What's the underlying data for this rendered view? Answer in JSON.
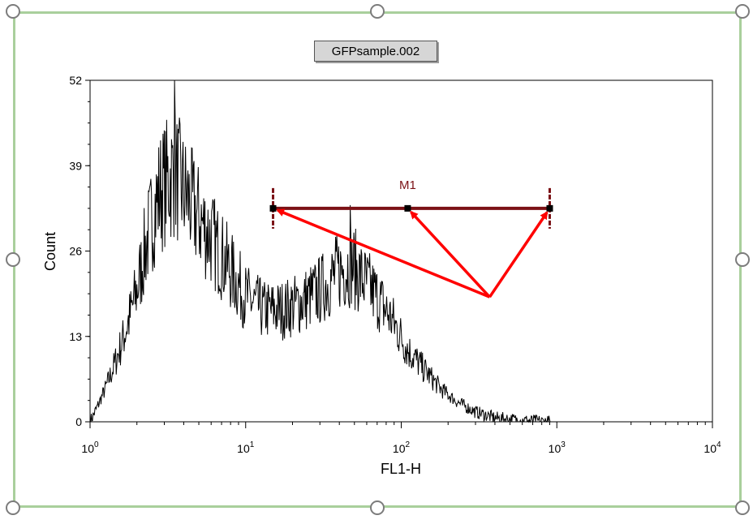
{
  "plot_title": "GFPsample.002",
  "colors": {
    "frame": "#a9cf9c",
    "histogram": "#000000",
    "marker": "#7b1115",
    "arrows": "#ff0000",
    "title_bg": "#d6d6d6"
  },
  "chart_data": {
    "type": "histogram",
    "title": "GFPsample.002",
    "xlabel": "FL1-H",
    "ylabel": "Count",
    "xscale": "log",
    "xlim": [
      1,
      10000
    ],
    "ylim": [
      0,
      52
    ],
    "y_ticks": [
      0,
      13,
      26,
      39,
      52
    ],
    "x_ticks": [
      {
        "base": "10",
        "exp": "0",
        "value": 1
      },
      {
        "base": "10",
        "exp": "1",
        "value": 10
      },
      {
        "base": "10",
        "exp": "2",
        "value": 100
      },
      {
        "base": "10",
        "exp": "3",
        "value": 1000
      },
      {
        "base": "10",
        "exp": "4",
        "value": 10000
      }
    ],
    "grid": false,
    "envelope": [
      {
        "x": 1.0,
        "y": 0
      },
      {
        "x": 1.1,
        "y": 2
      },
      {
        "x": 1.25,
        "y": 5
      },
      {
        "x": 1.4,
        "y": 8
      },
      {
        "x": 1.6,
        "y": 12
      },
      {
        "x": 1.8,
        "y": 16
      },
      {
        "x": 2.0,
        "y": 20
      },
      {
        "x": 2.2,
        "y": 25
      },
      {
        "x": 2.5,
        "y": 31
      },
      {
        "x": 2.8,
        "y": 35
      },
      {
        "x": 3.2,
        "y": 37
      },
      {
        "x": 3.5,
        "y": 38
      },
      {
        "x": 4.0,
        "y": 35
      },
      {
        "x": 5.0,
        "y": 31
      },
      {
        "x": 6.0,
        "y": 28
      },
      {
        "x": 8.0,
        "y": 23
      },
      {
        "x": 10.0,
        "y": 19
      },
      {
        "x": 13.0,
        "y": 17
      },
      {
        "x": 17.0,
        "y": 17
      },
      {
        "x": 22.0,
        "y": 18
      },
      {
        "x": 30.0,
        "y": 20
      },
      {
        "x": 40.0,
        "y": 23
      },
      {
        "x": 48.0,
        "y": 24
      },
      {
        "x": 55.0,
        "y": 22
      },
      {
        "x": 70.0,
        "y": 19
      },
      {
        "x": 90.0,
        "y": 15
      },
      {
        "x": 110.0,
        "y": 11
      },
      {
        "x": 140.0,
        "y": 8
      },
      {
        "x": 180.0,
        "y": 5
      },
      {
        "x": 230.0,
        "y": 3
      },
      {
        "x": 300.0,
        "y": 1.5
      },
      {
        "x": 400.0,
        "y": 0.6
      },
      {
        "x": 600.0,
        "y": 0.2
      },
      {
        "x": 900.0,
        "y": 0
      },
      {
        "x": 10000.0,
        "y": 0
      }
    ],
    "peak_spikes": [
      {
        "x": 3.5,
        "y": 52
      },
      {
        "x": 47,
        "y": 33
      }
    ],
    "marker": {
      "label": "M1",
      "x_start": 15,
      "x_mid": 110,
      "x_end": 900,
      "y": 32.5
    },
    "annotation_arrows": {
      "origin": {
        "x": 370,
        "y": 19
      },
      "targets": [
        {
          "x": 15,
          "y": 32.5
        },
        {
          "x": 110,
          "y": 32.5
        },
        {
          "x": 900,
          "y": 32.5
        }
      ]
    }
  }
}
